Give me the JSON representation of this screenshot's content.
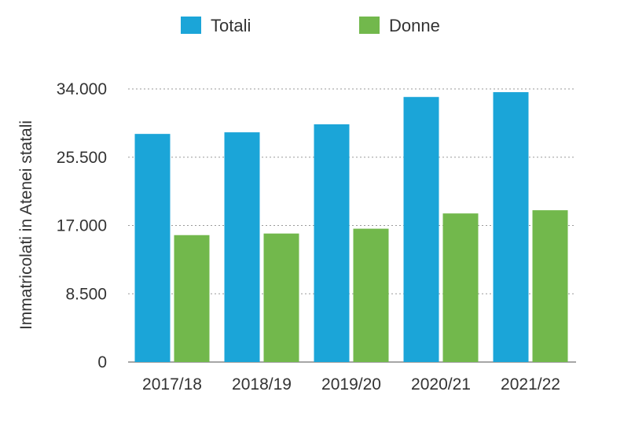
{
  "chart_data": {
    "type": "bar",
    "title": "",
    "xlabel": "",
    "ylabel": "Immatricolati in Atenei statali",
    "categories": [
      "2017/18",
      "2018/19",
      "2019/20",
      "2020/21",
      "2021/22"
    ],
    "series": [
      {
        "name": "Totali",
        "color": "#1ba5d8",
        "values": [
          28400,
          28600,
          29600,
          33000,
          33600
        ]
      },
      {
        "name": "Donne",
        "color": "#72b84c",
        "values": [
          15800,
          16000,
          16600,
          18500,
          18900
        ]
      }
    ],
    "ylim": [
      0,
      34000
    ],
    "yticks": [
      0,
      8500,
      17000,
      25500,
      34000
    ],
    "ytick_labels": [
      "0",
      "8.500",
      "17.000",
      "25.500",
      "34.000"
    ],
    "grid": true,
    "legend_position": "top"
  }
}
